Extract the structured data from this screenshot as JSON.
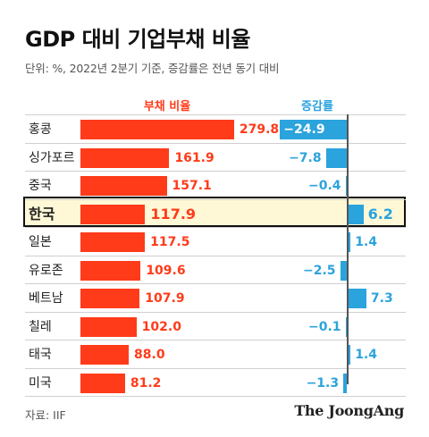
{
  "title": "GDP 대비 기업부채 비율",
  "subtitle": "단위: %, 2022년 2분기 기준, 증감률은 전년 동기 대비",
  "source": "자료: IIF",
  "brand": "The JoongAng",
  "colors": {
    "debt": "#ff3b1a",
    "change": "#2ba3dd",
    "highlight_bg": "#fff8d6"
  },
  "chart_data": {
    "type": "bar",
    "headers": {
      "debt": "부채 비율",
      "change": "증감률"
    },
    "categories": [
      "홍콩",
      "싱가포르",
      "중국",
      "한국",
      "일본",
      "유로존",
      "베트남",
      "칠레",
      "태국",
      "미국"
    ],
    "highlight": "한국",
    "series": [
      {
        "name": "부채 비율",
        "values": [
          279.8,
          161.9,
          157.1,
          117.9,
          117.5,
          109.6,
          107.9,
          102.0,
          88.0,
          81.2
        ]
      },
      {
        "name": "증감률",
        "values": [
          -24.9,
          -7.8,
          -0.4,
          6.2,
          1.4,
          -2.5,
          7.3,
          -0.1,
          1.4,
          -1.3
        ]
      }
    ],
    "debt_labels": [
      "279.8",
      "161.9",
      "157.1",
      "117.9",
      "117.5",
      "109.6",
      "107.9",
      "102.0",
      "88.0",
      "81.2"
    ],
    "change_labels": [
      "−24.9",
      "−7.8",
      "−0.4",
      "6.2",
      "1.4",
      "−2.5",
      "7.3",
      "−0.1",
      "1.4",
      "−1.3"
    ]
  }
}
